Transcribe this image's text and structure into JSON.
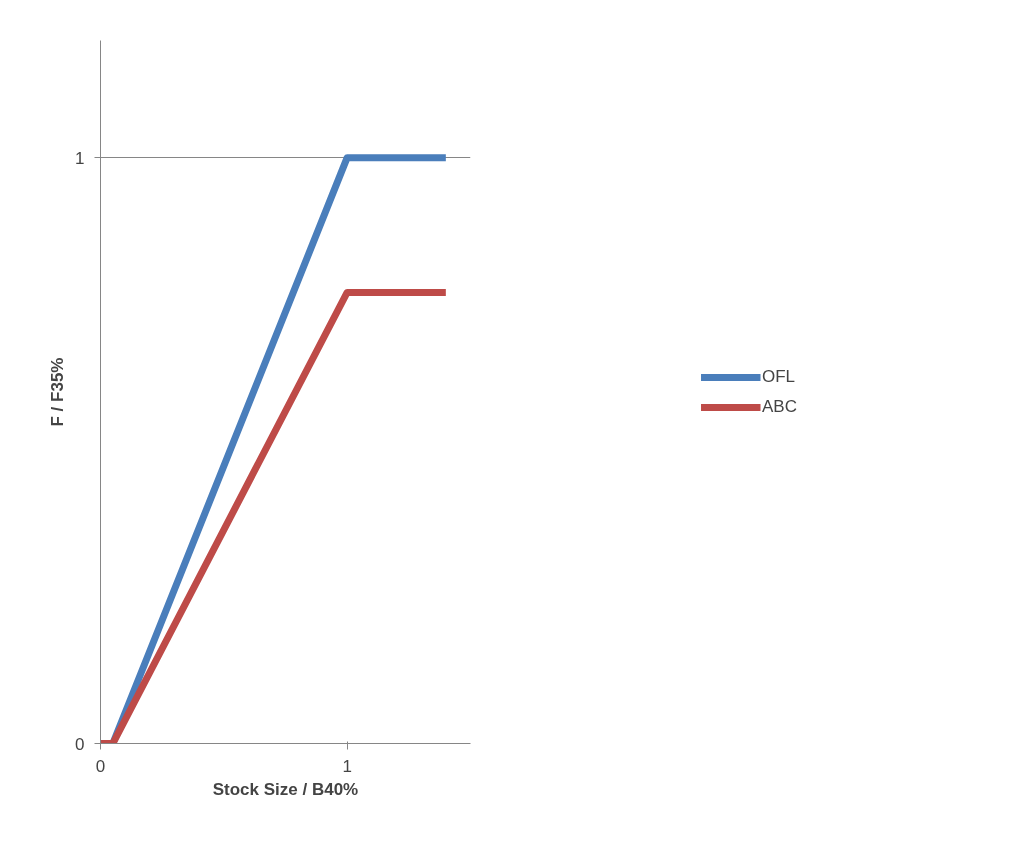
{
  "chart_data": {
    "type": "line",
    "xlabel": "Stock Size / B40%",
    "ylabel": "F / F35%",
    "xlim": [
      0,
      1.5
    ],
    "ylim": [
      0,
      1.2
    ],
    "xticks": [
      0,
      1
    ],
    "yticks": [
      0,
      1
    ],
    "grid": "y",
    "legend": "right",
    "marker": "none",
    "line_style": "solid",
    "series": [
      {
        "name": "OFL",
        "color": "#4a7ebb",
        "x": [
          0,
          0.05,
          1,
          1.4
        ],
        "values": [
          0,
          0,
          1,
          1
        ]
      },
      {
        "name": "ABC",
        "color": "#be4b48",
        "x": [
          0,
          0.05,
          1,
          1.4
        ],
        "values": [
          0,
          0,
          0.77,
          0.77
        ]
      }
    ]
  }
}
